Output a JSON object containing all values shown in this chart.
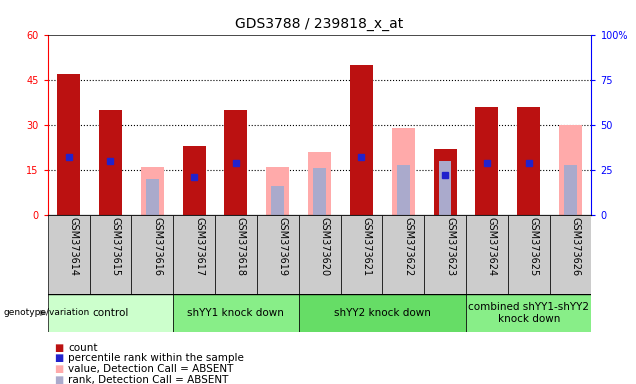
{
  "title": "GDS3788 / 239818_x_at",
  "samples": [
    "GSM373614",
    "GSM373615",
    "GSM373616",
    "GSM373617",
    "GSM373618",
    "GSM373619",
    "GSM373620",
    "GSM373621",
    "GSM373622",
    "GSM373623",
    "GSM373624",
    "GSM373625",
    "GSM373626"
  ],
  "count_values": [
    47,
    35,
    0,
    23,
    35,
    0,
    0,
    50,
    0,
    22,
    36,
    36,
    0
  ],
  "percentile_rank": [
    32,
    30,
    0,
    21,
    29,
    0,
    0,
    32,
    0,
    22,
    29,
    29,
    0
  ],
  "absent_value": [
    0,
    0,
    16,
    0,
    0,
    16,
    21,
    0,
    29,
    0,
    0,
    0,
    30
  ],
  "absent_rank": [
    0,
    0,
    20,
    0,
    0,
    16,
    26,
    0,
    28,
    30,
    0,
    0,
    28
  ],
  "ylim_left": [
    0,
    60
  ],
  "ylim_right": [
    0,
    100
  ],
  "yticks_left": [
    0,
    15,
    30,
    45,
    60
  ],
  "yticks_right": [
    0,
    25,
    50,
    75,
    100
  ],
  "groups": [
    {
      "label": "control",
      "start": 0,
      "end": 3,
      "color": "#ccffcc"
    },
    {
      "label": "shYY1 knock down",
      "start": 3,
      "end": 6,
      "color": "#88ee88"
    },
    {
      "label": "shYY2 knock down",
      "start": 6,
      "end": 10,
      "color": "#66dd66"
    },
    {
      "label": "combined shYY1-shYY2\nknock down",
      "start": 10,
      "end": 13,
      "color": "#88ee88"
    }
  ],
  "bar_width": 0.55,
  "count_color": "#bb1111",
  "rank_color": "#2222cc",
  "absent_value_color": "#ffaaaa",
  "absent_rank_color": "#aaaacc",
  "col_bg_color": "#cccccc",
  "title_fontsize": 10,
  "tick_fontsize": 7,
  "group_fontsize": 8,
  "legend_fontsize": 7.5
}
